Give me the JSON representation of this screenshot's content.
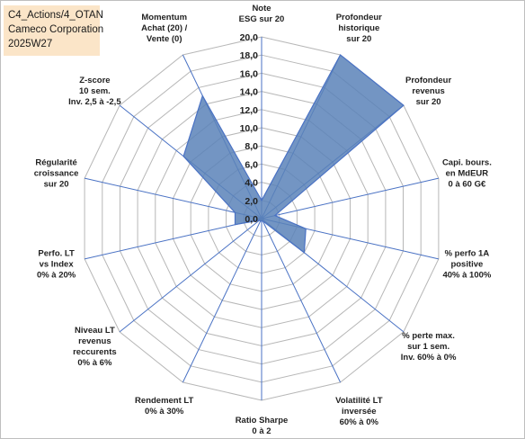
{
  "title_box": {
    "line1": "C4_Actions/4_OTAN",
    "line2": "Cameco Corporation",
    "line3": "2025W27"
  },
  "colors": {
    "fill": "#5b82b8",
    "stroke": "#4a72c4",
    "grid": "#b7b7b7",
    "spoke": "#4a72c4",
    "title_bg": "#fbe5c8"
  },
  "chart_data": {
    "type": "radar",
    "rmin": 0,
    "rmax": 20,
    "ticks": [
      "0,0",
      "2,0",
      "4,0",
      "6,0",
      "8,0",
      "10,0",
      "12,0",
      "14,0",
      "16,0",
      "18,0",
      "20,0"
    ],
    "grid": true,
    "axes": [
      {
        "label": [
          "Note",
          "ESG sur 20"
        ],
        "value": 2
      },
      {
        "label": [
          "Profondeur",
          "historique",
          "sur 20"
        ],
        "value": 20
      },
      {
        "label": [
          "Profondeur",
          "revenus",
          "sur 20"
        ],
        "value": 20
      },
      {
        "label": [
          "Capi. bours.",
          "en MdEUR",
          "0 à 60 G€"
        ],
        "value": 1.5
      },
      {
        "label": [
          "% perfo 1A",
          "positive",
          "40% à 100%"
        ],
        "value": 5
      },
      {
        "label": [
          "% perte max.",
          "sur 1 sem.",
          "Inv. 60% à 0%"
        ],
        "value": 6
      },
      {
        "label": [
          "Volatilité LT",
          "inversée",
          "60% à 0%"
        ],
        "value": 0.3
      },
      {
        "label": [
          "Ratio Sharpe",
          "0 à 2"
        ],
        "value": 0.3
      },
      {
        "label": [
          "Rendement LT",
          "0% à 30%"
        ],
        "value": 0.3
      },
      {
        "label": [
          "Niveau LT",
          "revenus",
          "reccurents",
          "0% à 6%"
        ],
        "value": 0.3
      },
      {
        "label": [
          "Perfo. LT",
          "vs Index",
          "0% à 20%"
        ],
        "value": 3
      },
      {
        "label": [
          "Régularité",
          "croissance",
          "sur 20"
        ],
        "value": 3
      },
      {
        "label": [
          "Z-score",
          "10 sem.",
          "Inv. 2,5 à -2,5"
        ],
        "value": 11
      },
      {
        "label": [
          "Momentum",
          "Achat (20) /",
          "Vente (0)"
        ],
        "value": 15
      }
    ]
  }
}
